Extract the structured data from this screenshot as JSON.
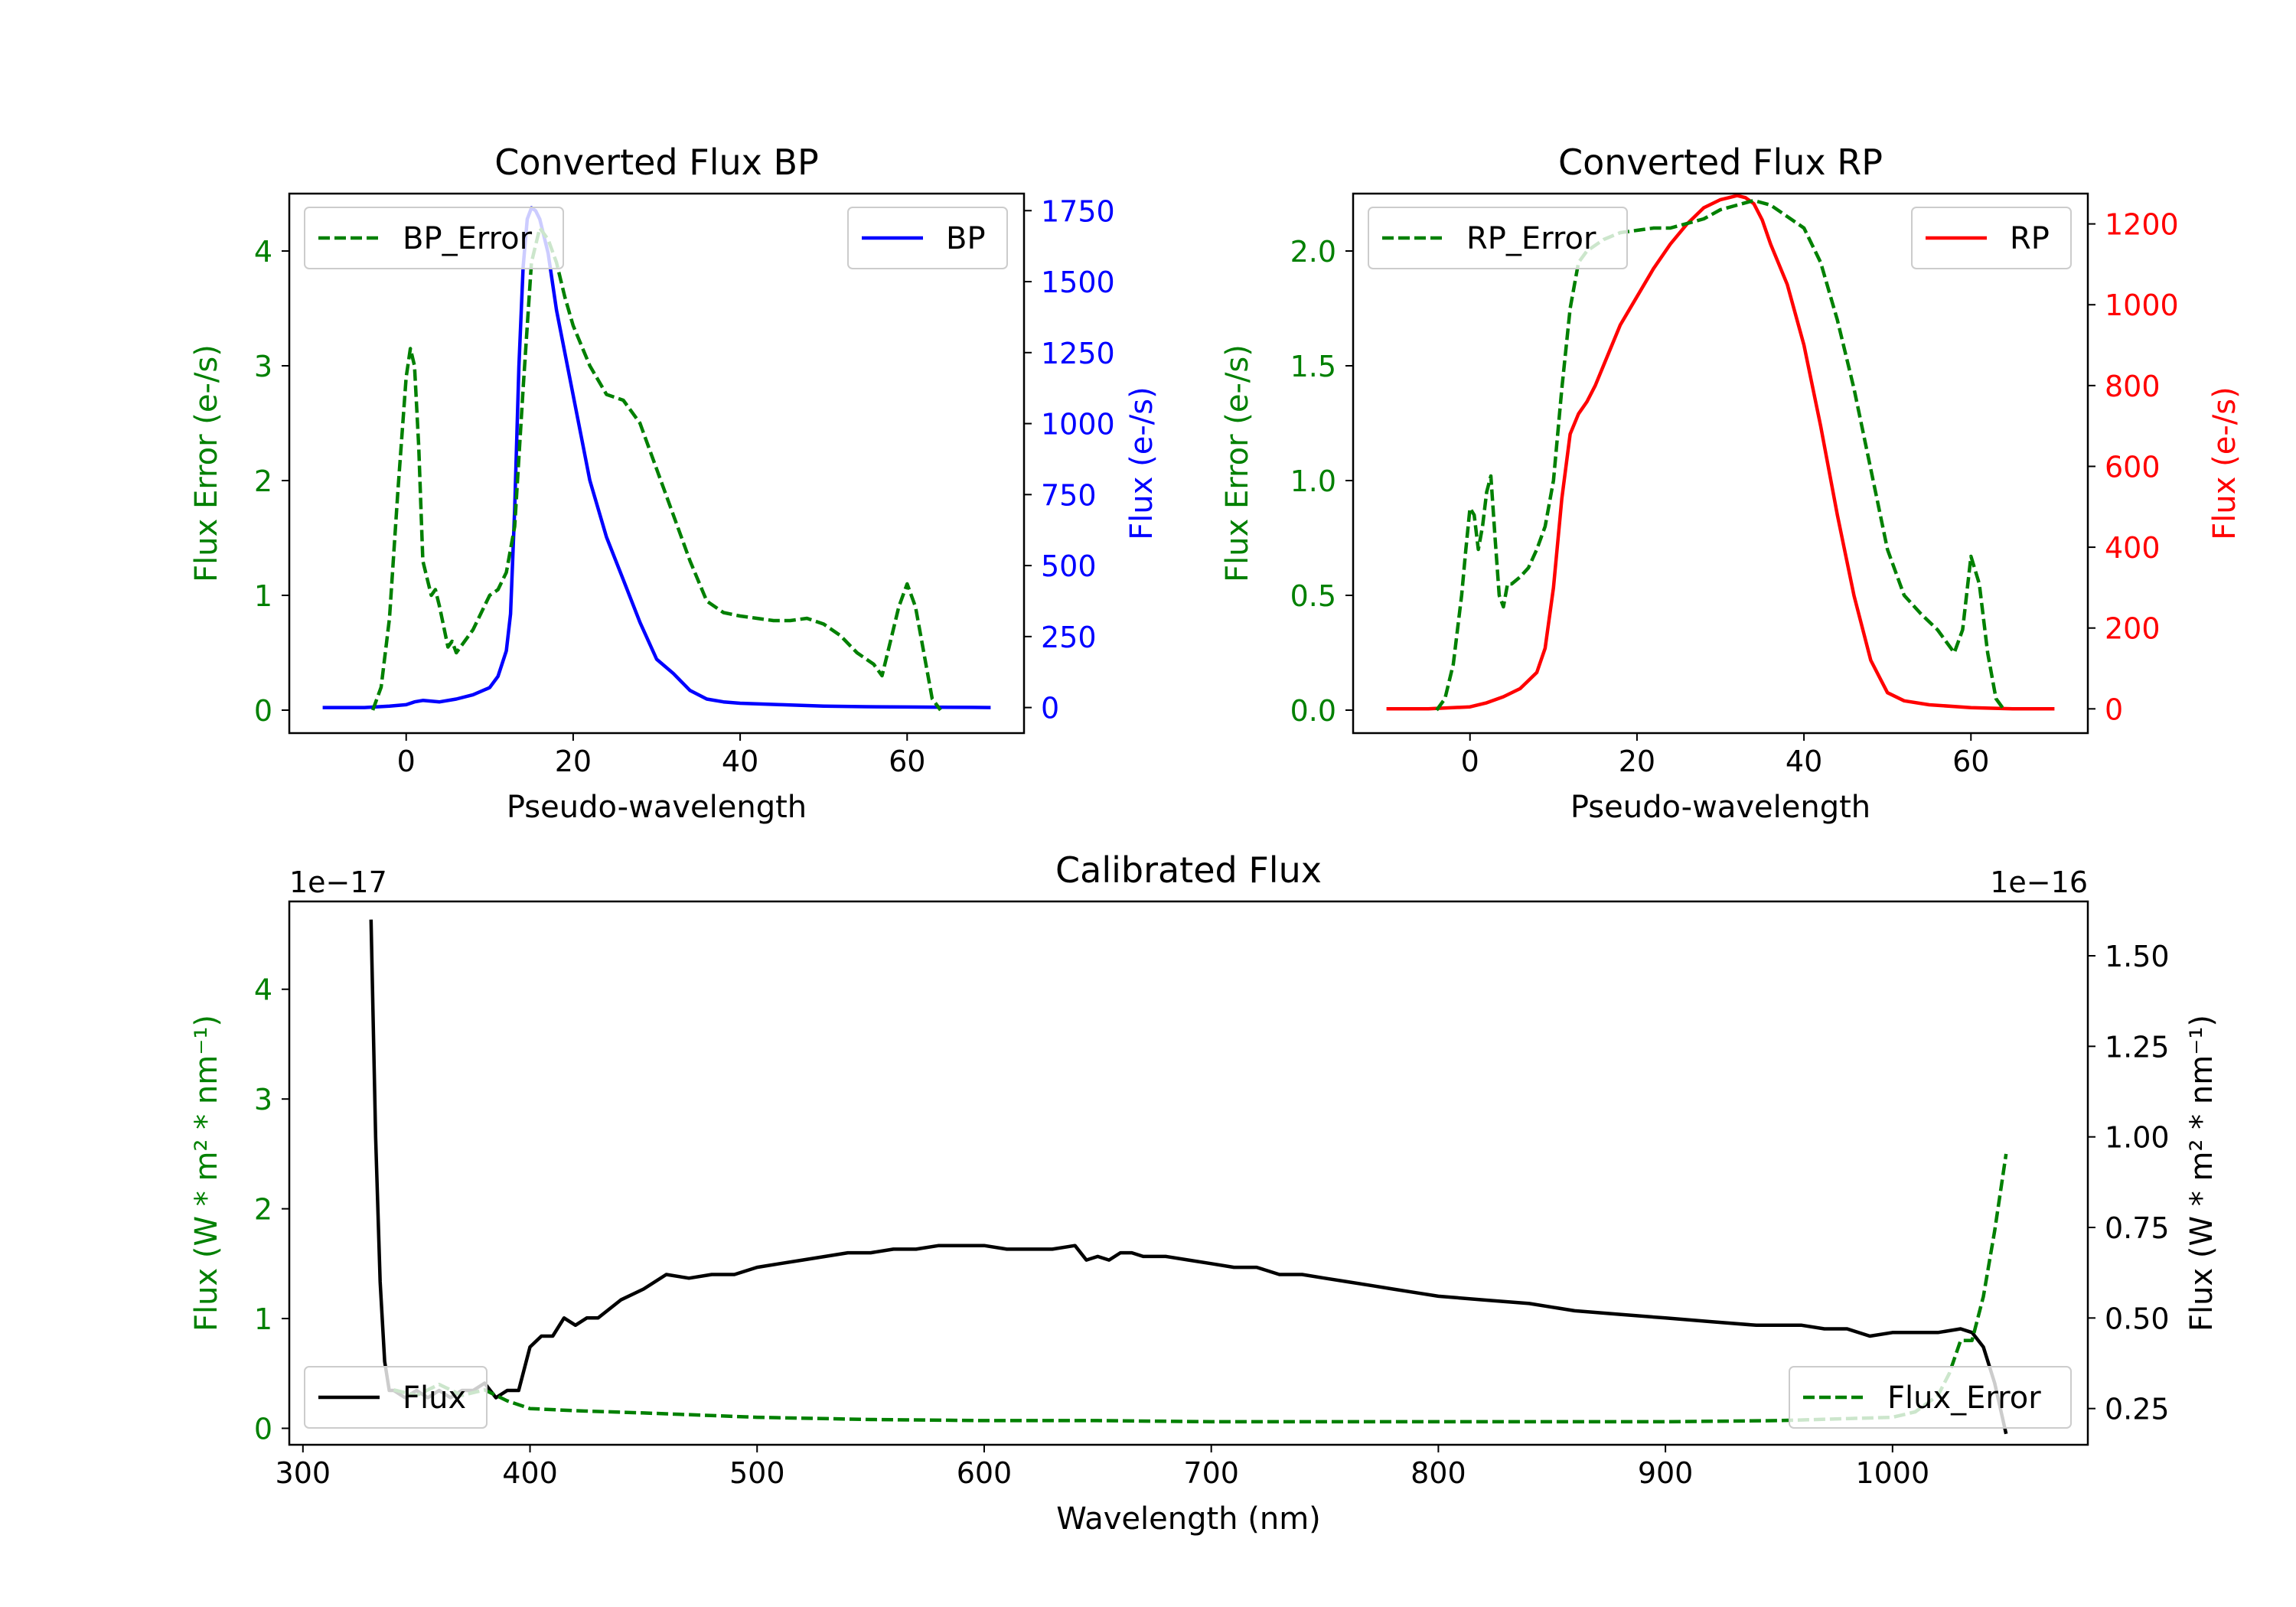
{
  "colors": {
    "green": "#008000",
    "blue": "#0000ff",
    "red": "#ff0000",
    "black": "#000000"
  },
  "chart_data": [
    {
      "type": "line",
      "title": "Converted Flux BP",
      "xlabel": "Pseudo-wavelength",
      "ylabel_left": "Flux Error (e-/s)",
      "ylabel_right": "Flux (e-/s)",
      "xlim": [
        -14,
        74
      ],
      "ylim_left": [
        -0.2,
        4.5
      ],
      "ylim_right": [
        -90,
        1810
      ],
      "xticks": [
        0,
        20,
        40,
        60
      ],
      "yticks_left": [
        0,
        1,
        2,
        3,
        4
      ],
      "yticks_right": [
        0,
        250,
        500,
        750,
        1000,
        1250,
        1500,
        1750
      ],
      "legend_left": "BP_Error",
      "legend_right": "BP",
      "series": [
        {
          "name": "BP_Error",
          "axis": "left",
          "style": "dashed",
          "color": "#008000",
          "x": [
            -4,
            -3,
            -2,
            -1,
            0,
            0.5,
            1,
            1.5,
            2,
            3,
            3.5,
            4,
            5,
            5.5,
            6,
            7,
            8,
            9,
            10,
            11,
            12,
            13,
            14,
            15,
            16,
            17,
            18,
            19,
            20,
            22,
            24,
            26,
            28,
            30,
            32,
            34,
            36,
            38,
            40,
            42,
            44,
            46,
            48,
            50,
            52,
            54,
            56,
            57,
            58,
            59,
            60,
            61,
            62,
            63,
            64
          ],
          "y": [
            0,
            0.2,
            0.8,
            1.9,
            2.9,
            3.15,
            3.0,
            2.3,
            1.3,
            1.0,
            1.05,
            0.9,
            0.55,
            0.6,
            0.5,
            0.6,
            0.7,
            0.85,
            1.0,
            1.05,
            1.2,
            1.6,
            2.8,
            3.9,
            4.2,
            4.1,
            3.9,
            3.6,
            3.35,
            3.0,
            2.75,
            2.7,
            2.5,
            2.1,
            1.7,
            1.3,
            0.95,
            0.85,
            0.82,
            0.8,
            0.78,
            0.78,
            0.8,
            0.75,
            0.65,
            0.5,
            0.4,
            0.3,
            0.6,
            0.9,
            1.1,
            0.9,
            0.5,
            0.1,
            0
          ]
        },
        {
          "name": "BP",
          "axis": "right",
          "style": "solid",
          "color": "#0000ff",
          "x": [
            -10,
            -5,
            -2,
            0,
            1,
            2,
            4,
            6,
            8,
            10,
            11,
            12,
            12.5,
            13,
            13.5,
            14,
            14.5,
            15,
            15.5,
            16,
            17,
            18,
            20,
            22,
            24,
            26,
            28,
            30,
            32,
            34,
            36,
            38,
            40,
            45,
            50,
            55,
            60,
            65,
            70
          ],
          "y": [
            0,
            0,
            5,
            10,
            20,
            25,
            20,
            30,
            45,
            70,
            110,
            200,
            330,
            700,
            1200,
            1550,
            1720,
            1760,
            1750,
            1720,
            1600,
            1400,
            1100,
            800,
            600,
            450,
            300,
            170,
            120,
            60,
            30,
            20,
            15,
            10,
            5,
            3,
            2,
            1,
            0
          ]
        }
      ]
    },
    {
      "type": "line",
      "title": "Converted Flux RP",
      "xlabel": "Pseudo-wavelength",
      "ylabel_left": "Flux Error (e-/s)",
      "ylabel_right": "Flux (e-/s)",
      "xlim": [
        -14,
        74
      ],
      "ylim_left": [
        -0.1,
        2.25
      ],
      "ylim_right": [
        -60,
        1275
      ],
      "xticks": [
        0,
        20,
        40,
        60
      ],
      "yticks_left": [
        0.0,
        0.5,
        1.0,
        1.5,
        2.0
      ],
      "yticks_right": [
        0,
        200,
        400,
        600,
        800,
        1000,
        1200
      ],
      "legend_left": "RP_Error",
      "legend_right": "RP",
      "series": [
        {
          "name": "RP_Error",
          "axis": "left",
          "style": "dashed",
          "color": "#008000",
          "x": [
            -4,
            -3,
            -2,
            -1,
            -0.5,
            0,
            0.5,
            1,
            1.5,
            2,
            2.5,
            3,
            3.5,
            4,
            4.5,
            5,
            6,
            7,
            8,
            9,
            10,
            11,
            12,
            13,
            14,
            16,
            18,
            20,
            22,
            24,
            26,
            28,
            30,
            32,
            34,
            36,
            38,
            40,
            42,
            44,
            46,
            48,
            50,
            52,
            54,
            56,
            57,
            58,
            59,
            60,
            61,
            62,
            63,
            64
          ],
          "y": [
            0,
            0.05,
            0.2,
            0.5,
            0.7,
            0.88,
            0.85,
            0.7,
            0.8,
            0.95,
            1.02,
            0.75,
            0.5,
            0.45,
            0.55,
            0.55,
            0.58,
            0.62,
            0.7,
            0.8,
            1.0,
            1.4,
            1.75,
            1.95,
            2.0,
            2.05,
            2.08,
            2.09,
            2.1,
            2.1,
            2.12,
            2.14,
            2.18,
            2.2,
            2.22,
            2.2,
            2.15,
            2.1,
            1.95,
            1.7,
            1.4,
            1.05,
            0.7,
            0.5,
            0.42,
            0.35,
            0.3,
            0.25,
            0.35,
            0.67,
            0.55,
            0.25,
            0.05,
            0
          ]
        },
        {
          "name": "RP",
          "axis": "right",
          "style": "solid",
          "color": "#ff0000",
          "x": [
            -10,
            -5,
            0,
            2,
            4,
            6,
            8,
            9,
            10,
            11,
            12,
            13,
            14,
            15,
            16,
            18,
            20,
            22,
            24,
            26,
            28,
            30,
            31,
            32,
            33,
            34,
            35,
            36,
            38,
            40,
            42,
            44,
            46,
            48,
            50,
            52,
            55,
            60,
            65,
            70
          ],
          "y": [
            0,
            0,
            5,
            15,
            30,
            50,
            90,
            150,
            300,
            520,
            680,
            730,
            760,
            800,
            850,
            950,
            1020,
            1090,
            1150,
            1200,
            1240,
            1260,
            1265,
            1270,
            1265,
            1250,
            1210,
            1150,
            1050,
            900,
            700,
            480,
            280,
            120,
            40,
            20,
            10,
            3,
            0,
            0
          ]
        }
      ]
    },
    {
      "type": "line",
      "title": "Calibrated Flux",
      "xlabel": "Wavelength (nm)",
      "ylabel_left": "Flux (W * m² * nm⁻¹)",
      "ylabel_right": "Flux (W * m² * nm⁻¹)",
      "scale_left": "1e−17",
      "scale_right": "1e−16",
      "xlim": [
        294,
        1086
      ],
      "ylim_left": [
        -0.15,
        4.8
      ],
      "ylim_right": [
        0.15,
        1.65
      ],
      "xticks": [
        300,
        400,
        500,
        600,
        700,
        800,
        900,
        1000
      ],
      "yticks_left": [
        0,
        1,
        2,
        3,
        4
      ],
      "yticks_right": [
        0.25,
        0.5,
        0.75,
        1.0,
        1.25,
        1.5
      ],
      "legend_left": "Flux",
      "legend_right": "Flux_Error",
      "series": [
        {
          "name": "Flux_Error",
          "axis": "left",
          "style": "dashed",
          "color": "#008000",
          "x": [
            340,
            350,
            360,
            370,
            380,
            390,
            400,
            420,
            450,
            500,
            550,
            600,
            650,
            700,
            750,
            800,
            850,
            900,
            950,
            1000,
            1010,
            1020,
            1025,
            1030,
            1035,
            1040,
            1045,
            1050
          ],
          "y": [
            0.35,
            0.3,
            0.4,
            0.3,
            0.35,
            0.25,
            0.18,
            0.16,
            0.14,
            0.1,
            0.08,
            0.07,
            0.07,
            0.06,
            0.06,
            0.06,
            0.06,
            0.06,
            0.07,
            0.1,
            0.15,
            0.3,
            0.5,
            0.8,
            0.8,
            1.2,
            1.8,
            2.5
          ]
        },
        {
          "name": "Flux",
          "axis": "right",
          "style": "solid",
          "color": "#000000",
          "x": [
            330,
            332,
            334,
            336,
            338,
            340,
            345,
            350,
            355,
            360,
            365,
            370,
            375,
            380,
            385,
            390,
            395,
            400,
            405,
            410,
            415,
            420,
            425,
            430,
            440,
            450,
            460,
            470,
            480,
            490,
            500,
            510,
            520,
            530,
            540,
            550,
            560,
            570,
            580,
            590,
            600,
            610,
            620,
            630,
            640,
            645,
            650,
            655,
            660,
            665,
            670,
            680,
            690,
            700,
            710,
            720,
            730,
            740,
            750,
            760,
            770,
            780,
            790,
            800,
            820,
            840,
            860,
            880,
            900,
            920,
            940,
            960,
            970,
            980,
            990,
            1000,
            1010,
            1020,
            1030,
            1035,
            1040,
            1045,
            1050
          ],
          "y": [
            1.6,
            1.0,
            0.6,
            0.38,
            0.3,
            0.3,
            0.28,
            0.3,
            0.28,
            0.3,
            0.28,
            0.3,
            0.3,
            0.32,
            0.28,
            0.3,
            0.3,
            0.42,
            0.45,
            0.45,
            0.5,
            0.48,
            0.5,
            0.5,
            0.55,
            0.58,
            0.62,
            0.61,
            0.62,
            0.62,
            0.64,
            0.65,
            0.66,
            0.67,
            0.68,
            0.68,
            0.69,
            0.69,
            0.7,
            0.7,
            0.7,
            0.69,
            0.69,
            0.69,
            0.7,
            0.66,
            0.67,
            0.66,
            0.68,
            0.68,
            0.67,
            0.67,
            0.66,
            0.65,
            0.64,
            0.64,
            0.62,
            0.62,
            0.61,
            0.6,
            0.59,
            0.58,
            0.57,
            0.56,
            0.55,
            0.54,
            0.52,
            0.51,
            0.5,
            0.49,
            0.48,
            0.48,
            0.47,
            0.47,
            0.45,
            0.46,
            0.46,
            0.46,
            0.47,
            0.46,
            0.42,
            0.32,
            0.18
          ]
        }
      ]
    }
  ]
}
